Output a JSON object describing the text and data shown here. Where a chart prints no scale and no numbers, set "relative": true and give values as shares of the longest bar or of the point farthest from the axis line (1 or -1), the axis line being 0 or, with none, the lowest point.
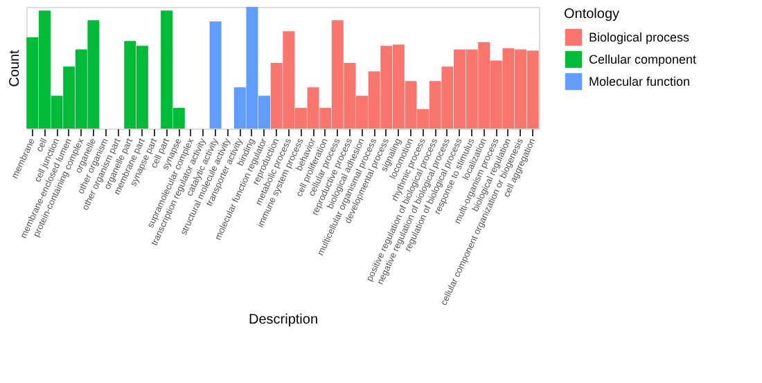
{
  "chart_data": {
    "type": "bar",
    "relative": true,
    "xlabel": "Description",
    "ylabel": "Count",
    "legend_title": "Ontology",
    "legend": "right",
    "grid": false,
    "categories": [
      "membrane",
      "cell",
      "cell junction",
      "membrane-enclosed lumen",
      "protein-containing complex",
      "organelle",
      "other organism",
      "other organism part",
      "organelle part",
      "membrane part",
      "synapse part",
      "cell part",
      "synapse",
      "supramolecular complex",
      "transcription regulator activity",
      "catalytic activity",
      "structural molecule activity",
      "transporter activity",
      "binding",
      "molecular function regulator",
      "reproduction",
      "metabolic process",
      "immune system process",
      "behavior",
      "cell proliferation",
      "cellular process",
      "reproductive process",
      "biological adhesion",
      "multicellular organismal process",
      "developmental process",
      "signaling",
      "locomotion",
      "rhythmic process",
      "positive regulation of biological process",
      "negative regulation of biological process",
      "regulation of biological process",
      "response to stimulus",
      "localization",
      "multi-organism process",
      "biological regulation",
      "cellular component organization or biogenesis",
      "cell aggregation"
    ],
    "series": [
      {
        "name": "Biological process",
        "color": "#f8766d",
        "values": [
          null,
          null,
          null,
          null,
          null,
          null,
          null,
          null,
          null,
          null,
          null,
          null,
          null,
          null,
          null,
          null,
          null,
          null,
          null,
          null,
          0.54,
          0.8,
          0.17,
          0.34,
          0.17,
          0.89,
          0.54,
          0.27,
          0.47,
          0.68,
          0.69,
          0.39,
          0.16,
          0.39,
          0.51,
          0.65,
          0.65,
          0.71,
          0.56,
          0.66,
          0.65,
          0.64
        ]
      },
      {
        "name": "Cellular component",
        "color": "#00ba38",
        "values": [
          0.75,
          0.97,
          0.27,
          0.51,
          0.65,
          0.89,
          null,
          null,
          0.72,
          0.68,
          null,
          0.97,
          0.17,
          null,
          null,
          null,
          null,
          null,
          null,
          null,
          null,
          null,
          null,
          null,
          null,
          null,
          null,
          null,
          null,
          null,
          null,
          null,
          null,
          null,
          null,
          null,
          null,
          null,
          null,
          null,
          null,
          null
        ]
      },
      {
        "name": "Molecular function",
        "color": "#619cff",
        "values": [
          null,
          null,
          null,
          null,
          null,
          null,
          null,
          null,
          null,
          null,
          null,
          null,
          null,
          null,
          null,
          0.88,
          null,
          0.34,
          1.0,
          0.27,
          null,
          null,
          null,
          null,
          null,
          null,
          null,
          null,
          null,
          null,
          null,
          null,
          null,
          null,
          null,
          null,
          null,
          null,
          null,
          null,
          null,
          null
        ]
      }
    ]
  }
}
